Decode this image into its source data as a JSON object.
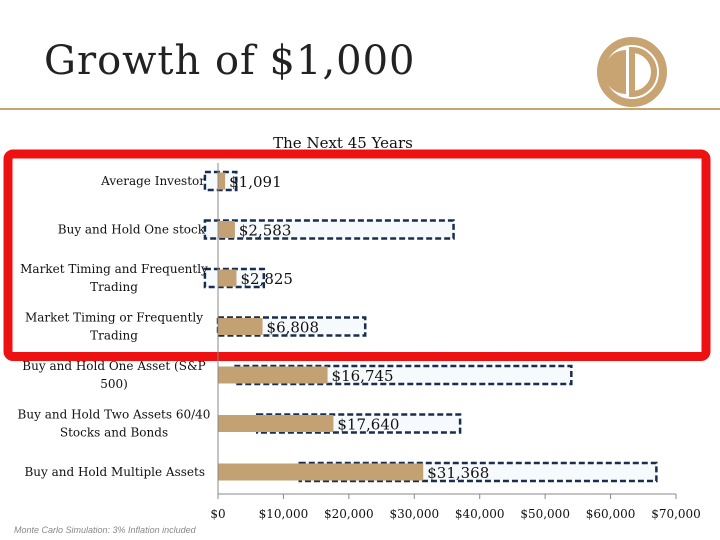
{
  "page": {
    "title": "Growth of $1,000",
    "footnote": "Monte Carlo Simulation: 3% Inflation included"
  },
  "colors": {
    "bar": "#c3a173",
    "accent": "#c7a472",
    "highlight_box": "#ee1111",
    "outline": "#1b2d4f"
  },
  "chart_data": {
    "type": "bar",
    "orientation": "horizontal",
    "title": "The Next 45 Years",
    "categories": [
      "Average Investor",
      "Buy and Hold One stock",
      "Market Timing and Frequently Trading",
      "Market Timing or Frequently Trading",
      "Buy and Hold One Asset (S&P 500)",
      "Buy and Hold Two Assets 60/40 Stocks and Bonds",
      "Buy and Hold Multiple Assets"
    ],
    "category_lines": [
      [
        "Average Investor"
      ],
      [
        "Buy and Hold One stock"
      ],
      [
        "Market Timing and Frequently",
        "Trading"
      ],
      [
        "Market Timing or Frequently",
        "Trading"
      ],
      [
        "Buy and Hold One Asset (S&P",
        "500)"
      ],
      [
        "Buy and Hold Two Assets 60/40",
        "Stocks and Bonds"
      ],
      [
        "Buy and Hold Multiple Assets"
      ]
    ],
    "values": [
      1091,
      2583,
      2825,
      6808,
      16745,
      17640,
      31368
    ],
    "value_labels": [
      "$1,091",
      "$2,583",
      "$2,825",
      "$6,808",
      "$16,745",
      "$17,640",
      "$31,368"
    ],
    "range_outlines": [
      [
        -2000,
        2800
      ],
      [
        -2000,
        36000
      ],
      [
        -2000,
        7000
      ],
      [
        0,
        22500
      ],
      [
        2500,
        54000
      ],
      [
        6000,
        37000
      ],
      [
        12500,
        67000
      ]
    ],
    "highlighted_rows": [
      0,
      1,
      2,
      3
    ],
    "xlim": [
      0,
      70000
    ],
    "xticks": [
      0,
      10000,
      20000,
      30000,
      40000,
      50000,
      60000,
      70000
    ],
    "xtick_labels": [
      "$0",
      "$10,000",
      "$20,000",
      "$30,000",
      "$40,000",
      "$50,000",
      "$60,000",
      "$70,000"
    ],
    "grid": false,
    "legend": "none"
  }
}
